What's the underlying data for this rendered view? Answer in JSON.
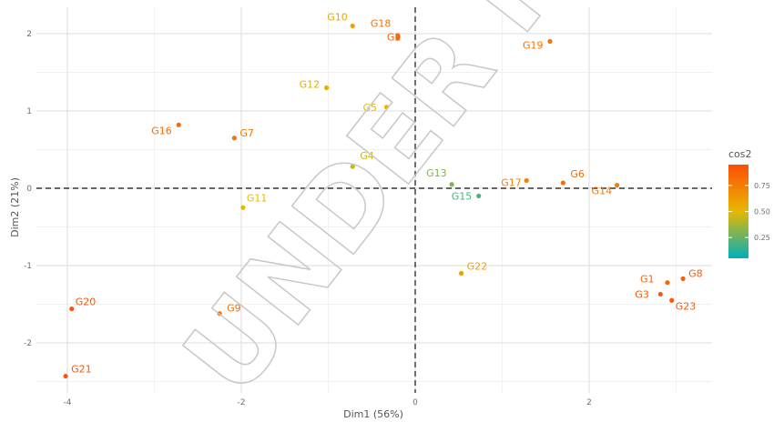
{
  "chart_data": {
    "type": "scatter",
    "title": "",
    "xlabel": "Dim1 (56%)",
    "ylabel": "Dim2 (21%)",
    "xlim": [
      -4.0,
      3.3
    ],
    "ylim": [
      -2.55,
      2.3
    ],
    "x_ticks": [
      -4,
      -2,
      0,
      2
    ],
    "y_ticks": [
      -2,
      -1,
      0,
      1,
      2
    ],
    "grid": true,
    "reference_lines": {
      "x": 0,
      "y": 0,
      "style": "dashed"
    },
    "color_variable": "cos2",
    "legend": {
      "title": "cos2",
      "ticks": [
        0.25,
        0.5,
        0.75
      ],
      "position": "right"
    },
    "watermark": "UNDER R",
    "points": [
      {
        "label": "G1",
        "x": 2.9,
        "y": -1.22,
        "cos2": 0.85
      },
      {
        "label": "G2",
        "x": -0.2,
        "y": 1.95,
        "cos2": 0.88
      },
      {
        "label": "G3",
        "x": 2.82,
        "y": -1.37,
        "cos2": 0.9
      },
      {
        "label": "G4",
        "x": -0.72,
        "y": 0.28,
        "cos2": 0.45
      },
      {
        "label": "G5",
        "x": -0.33,
        "y": 1.05,
        "cos2": 0.5
      },
      {
        "label": "G6",
        "x": 1.7,
        "y": 0.07,
        "cos2": 0.82
      },
      {
        "label": "G7",
        "x": -2.08,
        "y": 0.65,
        "cos2": 0.78
      },
      {
        "label": "G9",
        "x": -2.25,
        "y": -1.62,
        "cos2": 0.82
      },
      {
        "label": "G10",
        "x": -0.72,
        "y": 2.1,
        "cos2": 0.58
      },
      {
        "label": "G11",
        "x": -1.98,
        "y": -0.25,
        "cos2": 0.5
      },
      {
        "label": "G12",
        "x": -1.02,
        "y": 1.3,
        "cos2": 0.55
      },
      {
        "label": "G13",
        "x": 0.42,
        "y": 0.05,
        "cos2": 0.3
      },
      {
        "label": "G14",
        "x": 2.32,
        "y": 0.04,
        "cos2": 0.75
      },
      {
        "label": "G15",
        "x": 0.73,
        "y": -0.1,
        "cos2": 0.2
      },
      {
        "label": "G16",
        "x": -2.72,
        "y": 0.82,
        "cos2": 0.82
      },
      {
        "label": "G17",
        "x": 1.28,
        "y": 0.1,
        "cos2": 0.72
      },
      {
        "label": "G18",
        "x": -0.2,
        "y": 1.97,
        "cos2": 0.8
      },
      {
        "label": "G19",
        "x": 1.55,
        "y": 1.9,
        "cos2": 0.78
      },
      {
        "label": "G20",
        "x": -3.95,
        "y": -1.56,
        "cos2": 0.92
      },
      {
        "label": "G21",
        "x": -4.02,
        "y": -2.43,
        "cos2": 0.92
      },
      {
        "label": "G22",
        "x": 0.53,
        "y": -1.1,
        "cos2": 0.6
      },
      {
        "label": "G23",
        "x": 2.95,
        "y": -1.45,
        "cos2": 0.9
      },
      {
        "label": "G8",
        "x": 3.08,
        "y": -1.17,
        "cos2": 0.88
      }
    ]
  }
}
